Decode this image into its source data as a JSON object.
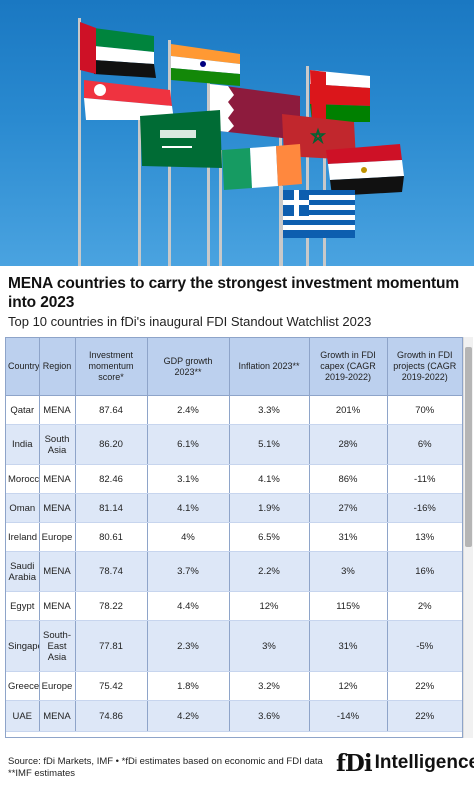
{
  "title": "MENA countries to carry the strongest investment momentum into 2023",
  "subtitle": "Top 10 countries in fDi's inaugural FDI Standout Watchlist 2023",
  "table": {
    "headers": [
      "Country",
      "Region",
      "Investment momentum score*",
      "GDP growth 2023**",
      "Inflation 2023**",
      "Growth in FDI capex (CAGR 2019-2022)",
      "Growth in FDI projects (CAGR 2019-2022)"
    ],
    "rows": [
      [
        "Qatar",
        "MENA",
        "87.64",
        "2.4%",
        "3.3%",
        "201%",
        "70%"
      ],
      [
        "India",
        "South Asia",
        "86.20",
        "6.1%",
        "5.1%",
        "28%",
        "6%"
      ],
      [
        "Morocco",
        "MENA",
        "82.46",
        "3.1%",
        "4.1%",
        "86%",
        "-11%"
      ],
      [
        "Oman",
        "MENA",
        "81.14",
        "4.1%",
        "1.9%",
        "27%",
        "-16%"
      ],
      [
        "Ireland",
        "Europe",
        "80.61",
        "4%",
        "6.5%",
        "31%",
        "13%"
      ],
      [
        "Saudi Arabia",
        "MENA",
        "78.74",
        "3.7%",
        "2.2%",
        "3%",
        "16%"
      ],
      [
        "Egypt",
        "MENA",
        "78.22",
        "4.4%",
        "12%",
        "115%",
        "2%"
      ],
      [
        "Singapore",
        "South-East Asia",
        "77.81",
        "2.3%",
        "3%",
        "31%",
        "-5%"
      ],
      [
        "Greece",
        "Europe",
        "75.42",
        "1.8%",
        "3.2%",
        "12%",
        "22%"
      ],
      [
        "UAE",
        "MENA",
        "74.86",
        "4.2%",
        "3.6%",
        "-14%",
        "22%"
      ]
    ]
  },
  "source_line1": "Source: fDi Markets, IMF • *fDi estimates based on economic and FDI data",
  "source_line2": "**IMF estimates",
  "logo": {
    "mark": "fDi",
    "text": "Intelligence"
  },
  "colors": {
    "header_bg": "#bcd0ee",
    "row_alt_bg": "#dde7f7",
    "sky": "#2a8ad0"
  }
}
